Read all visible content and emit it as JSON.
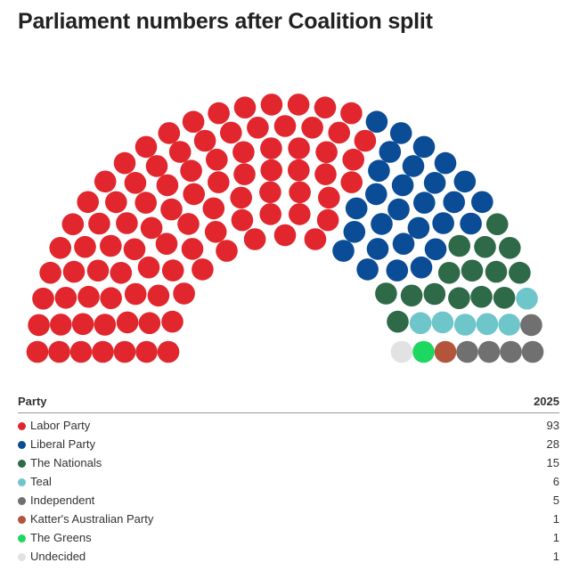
{
  "title": "Parliament numbers after Coalition split",
  "table": {
    "header_party": "Party",
    "header_year": "2025"
  },
  "chart_data": {
    "type": "parliament",
    "title": "Parliament numbers after Coalition split",
    "total_seats": 150,
    "series": [
      {
        "name": "Labor Party",
        "value": 93,
        "color": "#e1262d"
      },
      {
        "name": "Liberal Party",
        "value": 28,
        "color": "#0a4c95"
      },
      {
        "name": "The Nationals",
        "value": 15,
        "color": "#2e6a48"
      },
      {
        "name": "Teal",
        "value": 6,
        "color": "#6ec6ca"
      },
      {
        "name": "Independent",
        "value": 5,
        "color": "#707070"
      },
      {
        "name": "Katter's Australian Party",
        "value": 1,
        "color": "#b4553b"
      },
      {
        "name": "The Greens",
        "value": 1,
        "color": "#1ed760"
      },
      {
        "name": "Undecided",
        "value": 1,
        "color": "#e2e2e2"
      }
    ]
  }
}
